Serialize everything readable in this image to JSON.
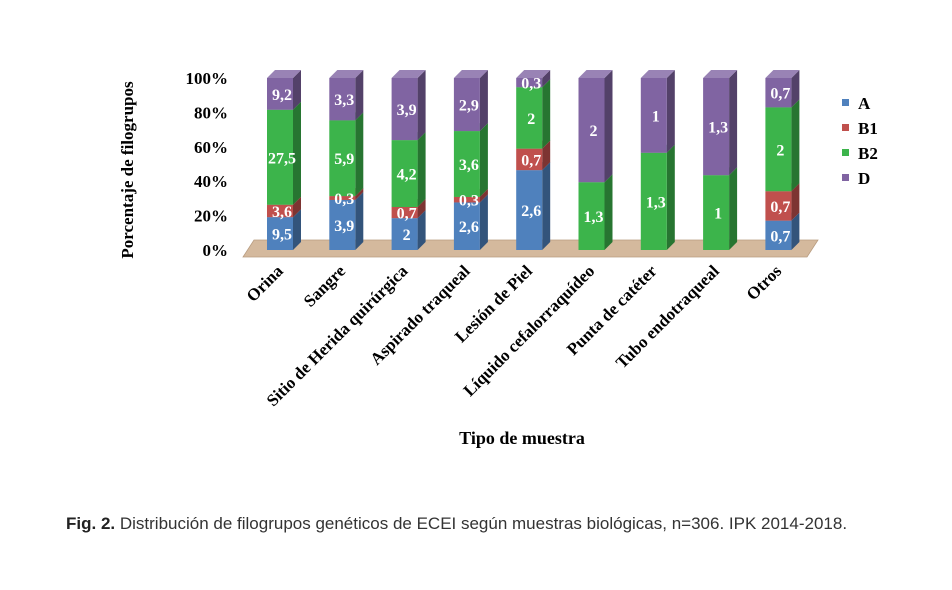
{
  "caption": {
    "label": "Fig. 2.",
    "text": " Distribución de filogrupos genéticos de ECEI según muestras biológicas, n=306. IPK 2014-2018."
  },
  "chart_data": {
    "type": "bar",
    "stacked": "percent",
    "title": "",
    "xlabel": "Tipo de muestra",
    "ylabel": "Porcentaje de filogrupos",
    "ylim": [
      0,
      100
    ],
    "yticks": [
      "0%",
      "20%",
      "40%",
      "60%",
      "80%",
      "100%"
    ],
    "legend_position": "right",
    "categories": [
      "Orina",
      "Sangre",
      "Sitio de Herida quirúrgica",
      "Aspirado traqueal",
      "Lesión de Piel",
      "Líquido cefalorraquídeo",
      "Punta de catéter",
      "Tubo endotraqueal",
      "Otros"
    ],
    "series": [
      {
        "name": "A",
        "color": "#4f81bd",
        "values": [
          9.5,
          3.9,
          2,
          2.6,
          2.6,
          0,
          0,
          0,
          0.7
        ],
        "labels": [
          "9,5",
          "3,9",
          "2",
          "2,6",
          "2,6",
          "",
          "",
          "",
          "0,7"
        ]
      },
      {
        "name": "B1",
        "color": "#c0504d",
        "values": [
          3.6,
          0.3,
          0.7,
          0.3,
          0.7,
          0,
          0,
          0,
          0.7
        ],
        "labels": [
          "3,6",
          "0,3",
          "0,7",
          "0,3",
          "0,7",
          "",
          "",
          "",
          "0,7"
        ]
      },
      {
        "name": "B2",
        "color": "#3cb44b",
        "values": [
          27.5,
          5.9,
          4.2,
          3.6,
          2,
          1.3,
          1.3,
          1,
          2
        ],
        "labels": [
          "27,5",
          "5,9",
          "4,2",
          "3,6",
          "2",
          "1,3",
          "1,3",
          "1",
          "2"
        ]
      },
      {
        "name": "D",
        "color": "#8064a2",
        "values": [
          9.2,
          3.3,
          3.9,
          2.9,
          0.3,
          2,
          1,
          1.3,
          0.7
        ],
        "labels": [
          "9,2",
          "3,3",
          "3,9",
          "2,9",
          "0,3",
          "2",
          "1",
          "1,3",
          "0,7"
        ]
      }
    ]
  }
}
